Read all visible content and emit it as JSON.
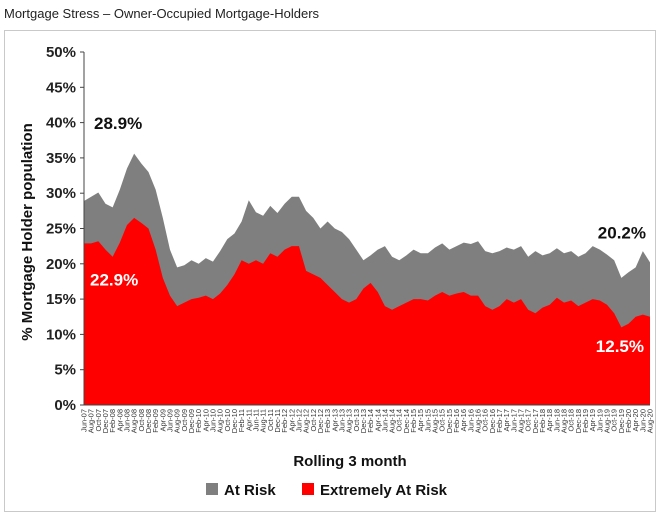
{
  "page_title": "Mortgage Stress – Owner-Occupied Mortgage-Holders",
  "chart_data": {
    "type": "area",
    "title": "Mortgage Stress – Owner-Occupied Mortgage-Holders",
    "xlabel": "Rolling 3 month",
    "ylabel": "% Mortgage Holder population",
    "ylim": [
      0,
      50
    ],
    "yticks": [
      "0%",
      "5%",
      "10%",
      "15%",
      "20%",
      "25%",
      "30%",
      "35%",
      "40%",
      "45%",
      "50%"
    ],
    "grid": false,
    "legend_position": "bottom",
    "colors": {
      "at_risk": "#7f7f7f",
      "extremely_at_risk": "#ff0000"
    },
    "categories": [
      "Jun-07",
      "Aug-07",
      "Oct-07",
      "Dec-07",
      "Feb-08",
      "Apr-08",
      "Jun-08",
      "Aug-08",
      "Oct-08",
      "Dec-08",
      "Feb-09",
      "Apr-09",
      "Jun-09",
      "Aug-09",
      "Oct-09",
      "Dec-09",
      "Feb-10",
      "Apr-10",
      "Jun-10",
      "Aug-10",
      "Oct-10",
      "Dec-10",
      "Feb-11",
      "Apr-11",
      "Jun-11",
      "Aug-11",
      "Oct-11",
      "Dec-11",
      "Feb-12",
      "Apr-12",
      "Jun-12",
      "Aug-12",
      "Oct-12",
      "Dec-12",
      "Feb-13",
      "Apr-13",
      "Jun-13",
      "Aug-13",
      "Oct-13",
      "Dec-13",
      "Feb-14",
      "Apr-14",
      "Jun-14",
      "Aug-14",
      "Oct-14",
      "Dec-14",
      "Feb-15",
      "Apr-15",
      "Jun-15",
      "Aug-15",
      "Oct-15",
      "Dec-15",
      "Feb-16",
      "Apr-16",
      "Jun-16",
      "Aug-16",
      "Oct-16",
      "Dec-16",
      "Feb-17",
      "Apr-17",
      "Jun-17",
      "Aug-17",
      "Oct-17",
      "Dec-17",
      "Feb-18",
      "Apr-18",
      "Jun-18",
      "Aug-18",
      "Oct-18",
      "Dec-18",
      "Feb-19",
      "Apr-19",
      "Jun-19",
      "Aug-19",
      "Oct-19",
      "Dec-19",
      "Feb-20",
      "Apr-20",
      "Jun-20",
      "Aug-20"
    ],
    "series": [
      {
        "name": "At Risk",
        "values": [
          28.9,
          29.5,
          30.1,
          28.5,
          28.0,
          30.5,
          33.5,
          35.6,
          34.2,
          33.0,
          30.5,
          26.5,
          22.0,
          19.5,
          19.8,
          20.5,
          20.0,
          20.8,
          20.3,
          21.8,
          23.5,
          24.3,
          26.0,
          29.0,
          27.3,
          26.8,
          28.2,
          27.2,
          28.5,
          29.5,
          29.5,
          27.5,
          26.5,
          25.0,
          26.0,
          25.0,
          24.5,
          23.5,
          22.0,
          20.5,
          21.2,
          22.0,
          22.5,
          21.0,
          20.5,
          21.2,
          22.0,
          21.5,
          21.5,
          22.3,
          22.9,
          22.0,
          22.5,
          23.0,
          22.8,
          23.2,
          21.8,
          21.5,
          21.8,
          22.3,
          22.0,
          22.5,
          21.0,
          21.8,
          21.2,
          21.5,
          22.2,
          21.5,
          21.8,
          21.0,
          21.5,
          22.5,
          22.0,
          21.3,
          20.5,
          18.0,
          18.8,
          19.5,
          21.8,
          20.2
        ]
      },
      {
        "name": "Extremely At Risk",
        "values": [
          22.9,
          22.9,
          23.2,
          22.0,
          21.0,
          23.0,
          25.5,
          26.5,
          25.8,
          25.0,
          22.0,
          18.0,
          15.5,
          14.0,
          14.5,
          15.0,
          15.2,
          15.5,
          15.0,
          15.8,
          17.0,
          18.5,
          20.5,
          20.0,
          20.5,
          20.0,
          21.5,
          21.0,
          22.0,
          22.5,
          22.5,
          19.0,
          18.5,
          18.0,
          17.0,
          16.0,
          15.0,
          14.5,
          15.0,
          16.5,
          17.3,
          16.0,
          14.0,
          13.5,
          14.0,
          14.5,
          15.0,
          15.0,
          14.8,
          15.5,
          16.0,
          15.5,
          15.8,
          16.0,
          15.5,
          15.5,
          14.0,
          13.5,
          14.0,
          15.0,
          14.5,
          15.0,
          13.5,
          13.0,
          13.8,
          14.2,
          15.2,
          14.5,
          14.8,
          14.0,
          14.5,
          15.0,
          14.8,
          14.2,
          13.0,
          11.0,
          11.5,
          12.5,
          12.8,
          12.5
        ]
      }
    ],
    "annotations": [
      {
        "text": "28.9%",
        "series": "At Risk",
        "index": 0
      },
      {
        "text": "22.9%",
        "series": "Extremely At Risk",
        "index": 0
      },
      {
        "text": "20.2%",
        "series": "At Risk",
        "index": 79
      },
      {
        "text": "12.5%",
        "series": "Extremely At Risk",
        "index": 79
      }
    ]
  },
  "legend": [
    {
      "label": "At Risk",
      "color": "#7f7f7f"
    },
    {
      "label": "Extremely At Risk",
      "color": "#ff0000"
    }
  ]
}
